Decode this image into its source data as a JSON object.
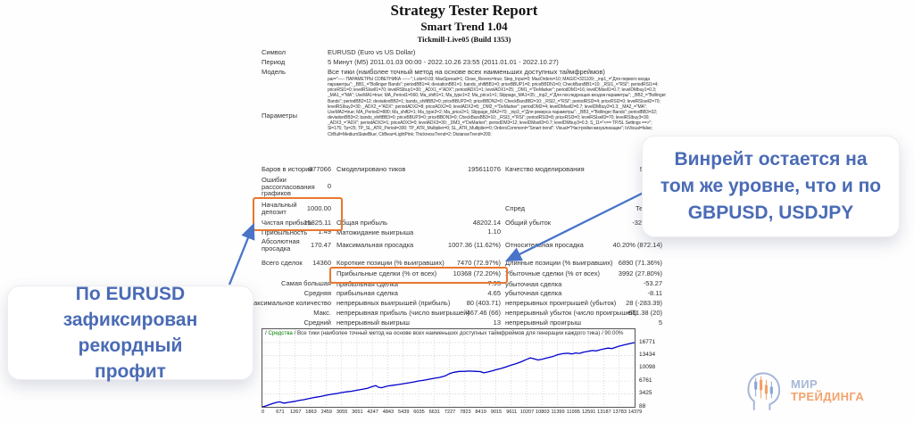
{
  "report": {
    "title": "Strategy Tester Report",
    "ea_name": "Smart Trend 1.04",
    "server": "Tickmill-Live05 (Build 1353)",
    "info_rows": [
      {
        "label": "Символ",
        "value": "EURUSD (Euro vs US Dollar)"
      },
      {
        "label": "Период",
        "value": "5 Минут (M5) 2011.01.03 00:00 - 2022.10.26 23:55 (2011.01.01 - 2022.10.27)"
      },
      {
        "label": "Модель",
        "value": "Все тики (наиболее точный метод на основе всех наименьших доступных таймфреймов)"
      },
      {
        "label": "Параметры",
        "value": "par=\"----- ПАРАМЕТРЫ СОВЕТНИКА ------\"; Lots=0.03; MaxSpread=1; Close_Revers=true; Step_Input=0; MaxOrders=10; MAGIC=321109; _inp1_=\"Для первого входа параметры\"; _BB1_=\"Bollinger Bands\"; periodBB1=4; deviationBB1=1; bands_shiftBB1=0; priceBBUP1=0; priceBBDN1=0; CheckBarsBB1=10; _RSI1_=\"RSI\"; periodRSI1=4; priceRSI1=0; levelRSIsell1=70; levelRSIbuy1=30; _ADX1_=\"ADX\"; periodADX1=1; levelADX1=25; _DM1_=\"DeMarker\"; periodDM1=16; levelDMsell1=0.7; levelDMbuy1=0.3; _MA1_=\"MA\"; UseMA1=true; MA_Period1=560; Ma_shift1=1; Ma_type1=2; Ma_price1=1; Slippage_MA1=35; _inp2_=\"Для последующих входов параметры\"; _BB2_=\"Bollinger Bands\"; periodBB2=12; deviationBB2=1; bands_shiftBB2=0; priceBBUP2=0; priceBBDN2=0; CheckBarsBB2=10; _RSI2_=\"RSI\"; periodRSI2=4; priceRSI2=0; levelRSIsell2=70; levelRSIbuy2=30; _ADX2_=\"ADX\"; periodADX2=8; priceADX2=0; levelADX2=8; _DM2_=\"DeMarker\"; periodDM2=4; levelDMsell2=0.7; levelDMbuy2=0.3; _MA2_=\"MA\"; UseMA2=true; MA_Period2=880; Ma_shift2=1; Ma_type2=2; Ma_price2=1; Slippage_MA2=70; _inp3_=\"Для реверса параметры\"; _BB3_=\"Bollinger Bands\"; periodBB3=32; deviationBB3=2; bands_shiftBB3=0; priceBBUP3=0; priceBBDN3=0; CheckBarsBB3=10; _RSI3_=\"RSI\"; periodRSI3=8; priceRSI3=0; levelRSIsell3=70; levelRSIbuy3=30; _ADX3_=\"ADX\"; periodADX3=1; priceADX3=0; levelADX3=30; _DM3_=\"DeMarker\"; periodDM3=12; levelDMsell3=0.7; levelDMbuy3=0.3; S_11=\"<== TP/SL Settings ==>\"; Sl=175; Tp=25; TP_SL_ATR_Period=300; TP_ATR_Multiplier=0; SL_ATR_Multiplier=0; OrdersComment=\"Smart trend\"; Visual=\"Настройки визуализации\"; IsVisual=false; ClrBull=MediumSlateBlue; ClrBear=LightPink; ThicknessTrend=2; DistanseTrend=200;"
      }
    ],
    "stat_rows": [
      {
        "l": "Баров в истории",
        "lv": "877066",
        "m": "Смоделировано тиков",
        "mv": "195611076",
        "r": "Качество моделирования",
        "rv": "90.00%"
      },
      {
        "l": "Ошибки\nрассогласования\nграфиков",
        "lv": "0"
      },
      {
        "l": "Начальный\nдепозит",
        "lv": "1000.00",
        "r": "Спред",
        "rv": "Текущий"
      },
      {
        "l": "Чистая прибыль",
        "lv": "15825.11",
        "m": "Общая прибыль",
        "mv": "48202.14",
        "r": "Общий убыток",
        "rv": "-32377.03"
      },
      {
        "l": "Прибыльность",
        "lv": "1.49",
        "m": "Матожидание выигрыша",
        "mv": "1.10"
      },
      {
        "l": "Абсолютная\nпросадка",
        "lv": "170.47",
        "m": "Максимальная просадка",
        "mv": "1007.36 (11.62%)",
        "r": "Относительная просадка",
        "rv": "40.20% (872.14)"
      },
      {
        "l": "Всего сделок",
        "lv": "14360",
        "m": "Короткие позиции (% выигравших)",
        "mv": "7470 (72.97%)",
        "r": "Длинные позиции (% выигравших)",
        "rv": "6890 (71.36%)"
      },
      {
        "m": "Прибыльные сделки (% от всех)",
        "mv": "10368 (72.20%)",
        "r": "Убыточные сделки (% от всех)",
        "rv": "3992 (27.80%)"
      },
      {
        "lv": "Самая большая",
        "m": "прибыльная сделка",
        "mv": "7.95",
        "r": "убыточная сделка",
        "rv": "-53.27"
      },
      {
        "lv": "Средняя",
        "m": "прибыльная сделка",
        "mv": "4.65",
        "r": "убыточная сделка",
        "rv": "-8.11"
      },
      {
        "lv": "Максимальное количество",
        "m": "непрерывных выигрышей (прибыль)",
        "mv": "80 (403.71)",
        "r": "непрерывных проигрышей (убыток)",
        "rv": "28 (-283.39)"
      },
      {
        "lv": "Макс.",
        "m": "непрерывная прибыль (число выигрышей)",
        "mv": "467.46 (66)",
        "r": "непрерывный убыток (число проигрышей)",
        "rv": "-611.38 (20)"
      },
      {
        "lv": "Средний",
        "m": "непрерывный выигрыш",
        "mv": "13",
        "r": "непрерывный проигрыш",
        "rv": "5"
      }
    ]
  },
  "chart_data": {
    "type": "line",
    "title_prefix": "/ ",
    "title_series": "Средства",
    "title_rest": " / Все тики (наиболее точный метод на основе всех наименьших доступных таймфреймов для генерации каждого тика) / 90.00%",
    "line_color": "#0000cc",
    "grid": true,
    "legend_position": "top-left",
    "xlabel": "",
    "ylabel": "",
    "x_range": [
      0,
      14379
    ],
    "y_range": [
      88,
      16771
    ],
    "y_ticks": [
      16771,
      13434,
      10098,
      6761,
      3425,
      88
    ],
    "x_ticks": [
      0,
      671,
      1267,
      1863,
      2459,
      3055,
      3651,
      4247,
      4843,
      5439,
      6035,
      6631,
      7227,
      7823,
      8419,
      9015,
      9611,
      10207,
      10803,
      11399,
      11995,
      12591,
      13187,
      13783,
      14379
    ],
    "equity_points": [
      [
        0,
        88
      ],
      [
        120,
        300
      ],
      [
        250,
        600
      ],
      [
        400,
        950
      ],
      [
        550,
        1250
      ],
      [
        671,
        1380
      ],
      [
        760,
        1180
      ],
      [
        850,
        1060
      ],
      [
        1000,
        1250
      ],
      [
        1150,
        1420
      ],
      [
        1267,
        1520
      ],
      [
        1450,
        1800
      ],
      [
        1600,
        1950
      ],
      [
        1750,
        2180
      ],
      [
        1863,
        2320
      ],
      [
        2050,
        2560
      ],
      [
        2250,
        2780
      ],
      [
        2459,
        3100
      ],
      [
        2650,
        3330
      ],
      [
        2850,
        3520
      ],
      [
        3055,
        3800
      ],
      [
        3250,
        3980
      ],
      [
        3450,
        4150
      ],
      [
        3651,
        4400
      ],
      [
        3850,
        4620
      ],
      [
        4050,
        4900
      ],
      [
        4247,
        5350
      ],
      [
        4380,
        5600
      ],
      [
        4480,
        5180
      ],
      [
        4600,
        5050
      ],
      [
        4750,
        5320
      ],
      [
        4843,
        5520
      ],
      [
        5050,
        5700
      ],
      [
        5250,
        5880
      ],
      [
        5439,
        6100
      ],
      [
        5650,
        6330
      ],
      [
        5850,
        6560
      ],
      [
        6035,
        6800
      ],
      [
        6250,
        7020
      ],
      [
        6450,
        7260
      ],
      [
        6631,
        7500
      ],
      [
        6850,
        7740
      ],
      [
        7050,
        8100
      ],
      [
        7227,
        8700
      ],
      [
        7400,
        9050
      ],
      [
        7600,
        9280
      ],
      [
        7823,
        9320
      ],
      [
        8000,
        9380
      ],
      [
        8200,
        9300
      ],
      [
        8419,
        9240
      ],
      [
        8550,
        8920
      ],
      [
        8700,
        9120
      ],
      [
        8900,
        9480
      ],
      [
        9015,
        9700
      ],
      [
        9200,
        10020
      ],
      [
        9400,
        10420
      ],
      [
        9611,
        10900
      ],
      [
        9800,
        11300
      ],
      [
        10000,
        11800
      ],
      [
        10207,
        12420
      ],
      [
        10350,
        12820
      ],
      [
        10500,
        12540
      ],
      [
        10650,
        12260
      ],
      [
        10803,
        12460
      ],
      [
        11000,
        12820
      ],
      [
        11200,
        13120
      ],
      [
        11399,
        13620
      ],
      [
        11600,
        13900
      ],
      [
        11800,
        14020
      ],
      [
        11950,
        13820
      ],
      [
        12100,
        14080
      ],
      [
        12250,
        13960
      ],
      [
        12400,
        14280
      ],
      [
        12591,
        14520
      ],
      [
        12750,
        14700
      ],
      [
        12900,
        14620
      ],
      [
        13050,
        14920
      ],
      [
        13187,
        15120
      ],
      [
        13350,
        15340
      ],
      [
        13500,
        15230
      ],
      [
        13650,
        15560
      ],
      [
        13783,
        15840
      ],
      [
        13950,
        16120
      ],
      [
        14100,
        16380
      ],
      [
        14250,
        16580
      ],
      [
        14379,
        16771
      ]
    ]
  },
  "callouts": {
    "top_right": "Винрейт остается на том же уровне, что и по GBPUSD, USDJPY",
    "bottom_left": "По EURUSD зафиксирован рекордный профит",
    "text_color": "#4a6bb5"
  },
  "highlights": {
    "box_color": "#e8772f",
    "arrow_color": "#4a74c8"
  },
  "logo": {
    "line1": "МИР",
    "line2": "ТРЕЙДИНГА",
    "line1_color": "#a8b8d8",
    "line2_color": "#f4a36c",
    "icon": "head-with-candlesticks"
  }
}
